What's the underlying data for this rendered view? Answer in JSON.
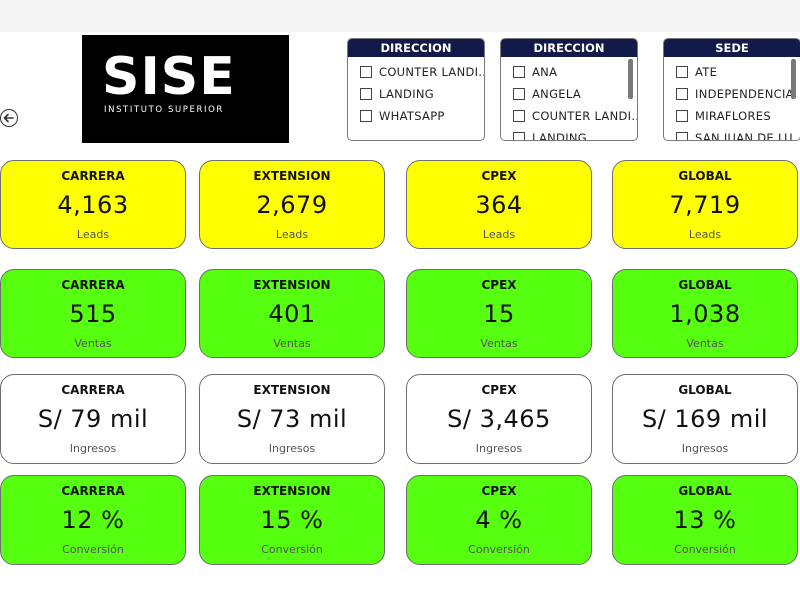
{
  "logo": {
    "brand": "SISE",
    "subtitle": "INSTITUTO SUPERIOR"
  },
  "slicers": [
    {
      "title": "DIRECCION",
      "items": [
        "COUNTER LANDI...",
        "LANDING",
        "WHATSAPP"
      ]
    },
    {
      "title": "DIRECCION",
      "items": [
        "ANA",
        "ANGELA",
        "COUNTER LANDI...",
        "LANDING"
      ]
    },
    {
      "title": "SEDE",
      "items": [
        "ATE",
        "INDEPENDENCIA",
        "MIRAFLORES",
        "SAN JUAN DE LU..."
      ]
    }
  ],
  "rows": [
    {
      "caption": "Leads",
      "color": "#ffff00",
      "cards": [
        {
          "label": "CARRERA",
          "value": "4,163"
        },
        {
          "label": "EXTENSION",
          "value": "2,679"
        },
        {
          "label": "CPEX",
          "value": "364"
        },
        {
          "label": "GLOBAL",
          "value": "7,719"
        }
      ]
    },
    {
      "caption": "Ventas",
      "color": "#55ff0f",
      "cards": [
        {
          "label": "CARRERA",
          "value": "515"
        },
        {
          "label": "EXTENSION",
          "value": "401"
        },
        {
          "label": "CPEX",
          "value": "15"
        },
        {
          "label": "GLOBAL",
          "value": "1,038"
        }
      ]
    },
    {
      "caption": "Ingresos",
      "color": "#ffffff",
      "cards": [
        {
          "label": "CARRERA",
          "value": "S/ 79 mil"
        },
        {
          "label": "EXTENSION",
          "value": "S/ 73 mil"
        },
        {
          "label": "CPEX",
          "value": "S/ 3,465"
        },
        {
          "label": "GLOBAL",
          "value": "S/ 169 mil"
        }
      ]
    },
    {
      "caption": "Conversión",
      "color": "#55ff0f",
      "cards": [
        {
          "label": "CARRERA",
          "value": "12 %"
        },
        {
          "label": "EXTENSION",
          "value": "15 %"
        },
        {
          "label": "CPEX",
          "value": "4 %"
        },
        {
          "label": "GLOBAL",
          "value": "13 %"
        }
      ]
    }
  ]
}
